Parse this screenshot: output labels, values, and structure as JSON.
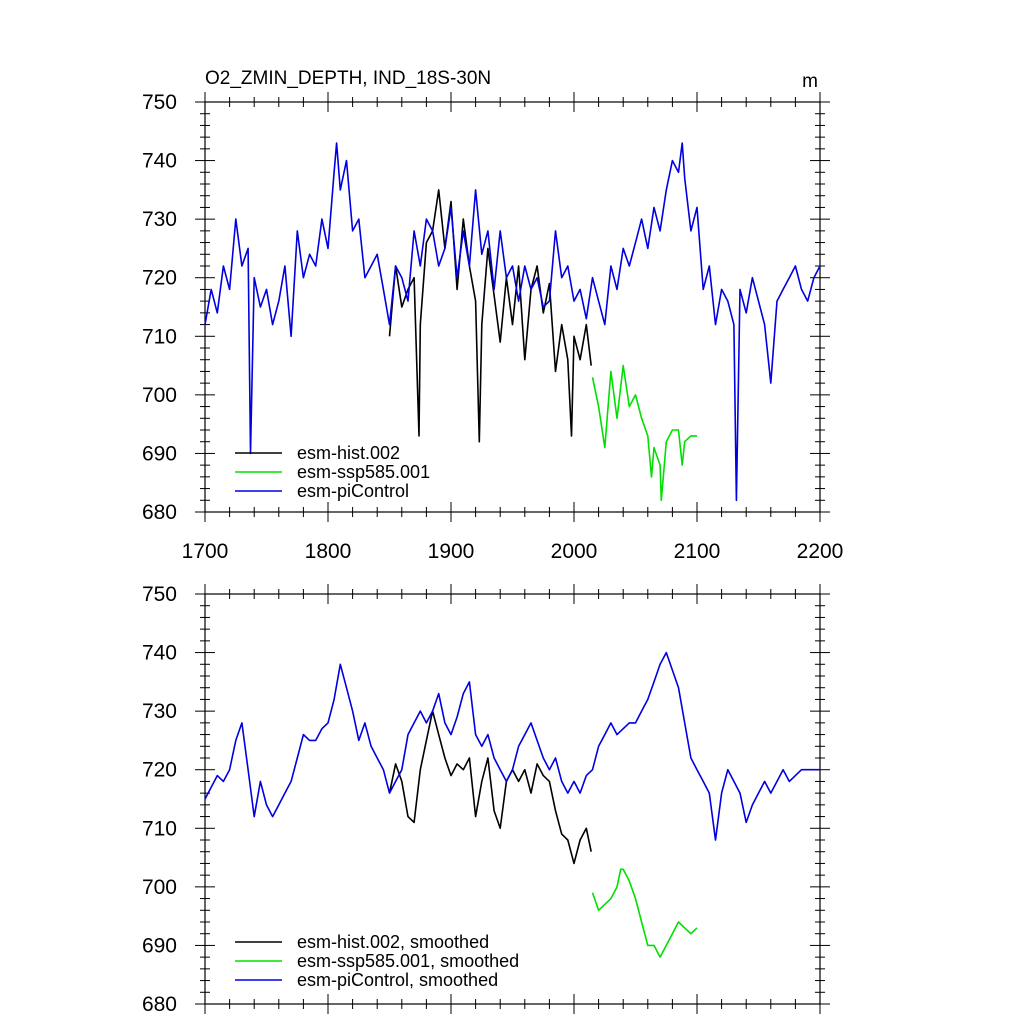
{
  "chart_data": [
    {
      "type": "line",
      "title": "O2_ZMIN_DEPTH, IND_18S-30N",
      "units": "m",
      "xlim": [
        1700,
        2200
      ],
      "ylim": [
        680,
        750
      ],
      "x_ticks": [
        "1700",
        "1800",
        "1900",
        "2000",
        "2100",
        "2200"
      ],
      "y_ticks": [
        "680",
        "690",
        "700",
        "710",
        "720",
        "730",
        "740",
        "750"
      ],
      "legend": "bottom-left",
      "series": [
        {
          "name": "esm-hist.002",
          "color": "#000000",
          "x": [
            1850,
            1855,
            1860,
            1865,
            1870,
            1874,
            1875,
            1880,
            1885,
            1890,
            1895,
            1900,
            1905,
            1910,
            1915,
            1920,
            1923,
            1925,
            1930,
            1935,
            1940,
            1945,
            1950,
            1955,
            1960,
            1965,
            1970,
            1975,
            1980,
            1985,
            1990,
            1995,
            1998,
            2000,
            2005,
            2010,
            2014
          ],
          "values": [
            710,
            722,
            715,
            718,
            720,
            693,
            712,
            726,
            728,
            735,
            725,
            733,
            718,
            730,
            722,
            716,
            692,
            712,
            725,
            717,
            709,
            720,
            712,
            722,
            706,
            718,
            722,
            714,
            719,
            704,
            712,
            706,
            693,
            710,
            706,
            712,
            705
          ]
        },
        {
          "name": "esm-ssp585.001",
          "color": "#00e000",
          "x": [
            2015,
            2020,
            2025,
            2030,
            2035,
            2040,
            2045,
            2050,
            2055,
            2060,
            2063,
            2065,
            2070,
            2071,
            2075,
            2080,
            2085,
            2088,
            2090,
            2095,
            2100
          ],
          "values": [
            703,
            698,
            691,
            704,
            696,
            705,
            698,
            700,
            696,
            693,
            686,
            691,
            688,
            682,
            692,
            694,
            694,
            688,
            692,
            693,
            693
          ]
        },
        {
          "name": "esm-piControl",
          "color": "#0000e0",
          "x": [
            1700,
            1705,
            1710,
            1715,
            1720,
            1725,
            1730,
            1735,
            1737,
            1740,
            1745,
            1750,
            1755,
            1760,
            1765,
            1770,
            1775,
            1780,
            1785,
            1790,
            1795,
            1800,
            1805,
            1807,
            1810,
            1815,
            1820,
            1825,
            1830,
            1835,
            1840,
            1845,
            1850,
            1855,
            1860,
            1865,
            1870,
            1875,
            1880,
            1885,
            1890,
            1895,
            1900,
            1905,
            1910,
            1915,
            1920,
            1925,
            1930,
            1935,
            1940,
            1945,
            1950,
            1955,
            1960,
            1965,
            1970,
            1975,
            1980,
            1985,
            1990,
            1995,
            2000,
            2005,
            2010,
            2015,
            2020,
            2025,
            2030,
            2035,
            2040,
            2045,
            2050,
            2055,
            2060,
            2065,
            2070,
            2075,
            2080,
            2085,
            2088,
            2090,
            2095,
            2100,
            2105,
            2110,
            2115,
            2120,
            2125,
            2130,
            2132,
            2135,
            2140,
            2145,
            2150,
            2155,
            2160,
            2165,
            2170,
            2175,
            2180,
            2185,
            2190,
            2195,
            2200
          ],
          "values": [
            712,
            718,
            714,
            722,
            718,
            730,
            722,
            725,
            690,
            720,
            715,
            718,
            712,
            716,
            722,
            710,
            728,
            720,
            724,
            722,
            730,
            725,
            738,
            743,
            735,
            740,
            728,
            730,
            720,
            722,
            724,
            718,
            712,
            722,
            720,
            716,
            728,
            722,
            730,
            728,
            722,
            725,
            732,
            720,
            728,
            722,
            735,
            724,
            728,
            718,
            728,
            720,
            722,
            716,
            722,
            718,
            720,
            715,
            716,
            728,
            720,
            722,
            716,
            718,
            713,
            720,
            716,
            712,
            722,
            718,
            725,
            722,
            726,
            730,
            725,
            732,
            728,
            735,
            740,
            738,
            743,
            737,
            728,
            732,
            718,
            722,
            712,
            718,
            716,
            712,
            682,
            718,
            714,
            720,
            716,
            712,
            702,
            716,
            718,
            720,
            722,
            718,
            716,
            720,
            722
          ]
        }
      ]
    },
    {
      "type": "line",
      "title": "",
      "xlim": [
        1700,
        2200
      ],
      "ylim": [
        680,
        750
      ],
      "y_ticks": [
        "680",
        "690",
        "700",
        "710",
        "720",
        "730",
        "740",
        "750"
      ],
      "legend": "bottom-left",
      "series": [
        {
          "name": "esm-hist.002, smoothed",
          "color": "#000000",
          "x": [
            1850,
            1855,
            1860,
            1865,
            1870,
            1875,
            1880,
            1885,
            1890,
            1895,
            1900,
            1905,
            1910,
            1915,
            1920,
            1925,
            1930,
            1935,
            1940,
            1945,
            1950,
            1955,
            1960,
            1965,
            1970,
            1975,
            1980,
            1985,
            1990,
            1995,
            2000,
            2005,
            2010,
            2014
          ],
          "values": [
            716,
            721,
            718,
            712,
            711,
            720,
            725,
            730,
            726,
            722,
            719,
            721,
            720,
            722,
            712,
            718,
            722,
            713,
            710,
            718,
            720,
            718,
            720,
            716,
            721,
            719,
            718,
            713,
            709,
            708,
            704,
            708,
            710,
            706
          ]
        },
        {
          "name": "esm-ssp585.001, smoothed",
          "color": "#00e000",
          "x": [
            2015,
            2020,
            2025,
            2030,
            2035,
            2038,
            2040,
            2045,
            2050,
            2055,
            2060,
            2065,
            2070,
            2075,
            2080,
            2085,
            2090,
            2095,
            2100
          ],
          "values": [
            699,
            696,
            697,
            698,
            700,
            703,
            703,
            701,
            698,
            694,
            690,
            690,
            688,
            690,
            692,
            694,
            693,
            692,
            693
          ]
        },
        {
          "name": "esm-piControl, smoothed",
          "color": "#0000e0",
          "x": [
            1700,
            1705,
            1710,
            1715,
            1720,
            1725,
            1730,
            1735,
            1740,
            1745,
            1750,
            1755,
            1760,
            1765,
            1770,
            1775,
            1780,
            1785,
            1790,
            1795,
            1800,
            1805,
            1810,
            1815,
            1820,
            1825,
            1830,
            1835,
            1840,
            1845,
            1850,
            1855,
            1860,
            1865,
            1870,
            1875,
            1880,
            1885,
            1890,
            1895,
            1900,
            1905,
            1910,
            1915,
            1920,
            1925,
            1930,
            1935,
            1940,
            1945,
            1950,
            1955,
            1960,
            1965,
            1970,
            1975,
            1980,
            1985,
            1990,
            1995,
            2000,
            2005,
            2010,
            2015,
            2020,
            2025,
            2030,
            2035,
            2040,
            2045,
            2050,
            2055,
            2060,
            2065,
            2070,
            2075,
            2080,
            2085,
            2090,
            2095,
            2100,
            2105,
            2110,
            2115,
            2120,
            2125,
            2130,
            2135,
            2140,
            2145,
            2150,
            2155,
            2160,
            2165,
            2170,
            2175,
            2180,
            2185,
            2190,
            2195,
            2200
          ],
          "values": [
            715,
            717,
            719,
            718,
            720,
            725,
            728,
            720,
            712,
            718,
            714,
            712,
            714,
            716,
            718,
            722,
            726,
            725,
            725,
            727,
            728,
            732,
            738,
            734,
            730,
            725,
            728,
            724,
            722,
            720,
            716,
            718,
            720,
            726,
            728,
            730,
            728,
            730,
            733,
            728,
            726,
            729,
            733,
            735,
            726,
            724,
            726,
            722,
            720,
            718,
            720,
            724,
            726,
            728,
            725,
            722,
            720,
            722,
            718,
            716,
            718,
            716,
            719,
            720,
            724,
            726,
            728,
            726,
            727,
            728,
            728,
            730,
            732,
            735,
            738,
            740,
            737,
            734,
            728,
            722,
            720,
            718,
            716,
            708,
            716,
            720,
            718,
            716,
            711,
            714,
            716,
            718,
            716,
            718,
            720,
            718,
            719,
            720,
            720,
            720,
            720
          ]
        }
      ]
    }
  ]
}
